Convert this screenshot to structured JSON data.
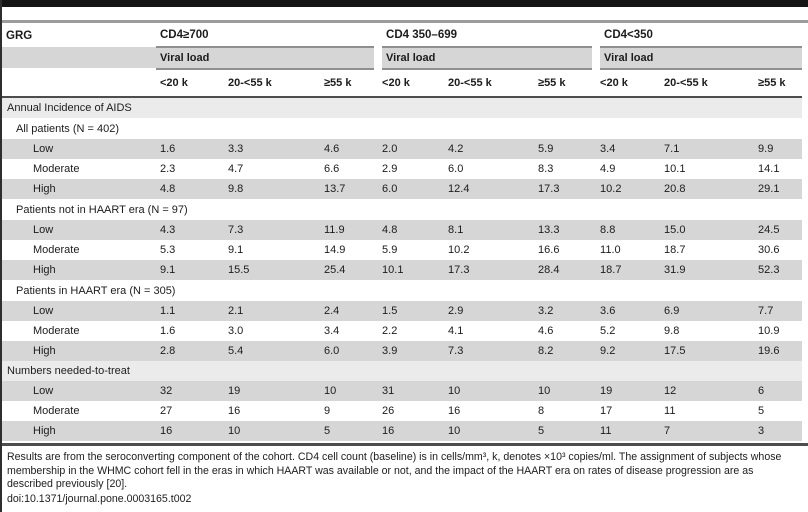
{
  "table": {
    "row_label_header": "GRG",
    "groups": [
      {
        "label": "CD4≥700",
        "subheader": "Viral load",
        "columns": [
          "<20 k",
          "20-<55 k",
          "≥55 k"
        ]
      },
      {
        "label": "CD4 350–699",
        "subheader": "Viral load",
        "columns": [
          "<20 k",
          "20-<55 k",
          "≥55 k"
        ]
      },
      {
        "label": "CD4<350",
        "subheader": "Viral load",
        "columns": [
          "<20 k",
          "20-<55 k",
          "≥55 k"
        ]
      }
    ],
    "sections": [
      {
        "title": "Annual Incidence of AIDS",
        "subsections": [
          {
            "title": "All patients (N = 402)",
            "rows": [
              {
                "label": "Low",
                "values": [
                  "1.6",
                  "3.3",
                  "4.6",
                  "2.0",
                  "4.2",
                  "5.9",
                  "3.4",
                  "7.1",
                  "9.9"
                ]
              },
              {
                "label": "Moderate",
                "values": [
                  "2.3",
                  "4.7",
                  "6.6",
                  "2.9",
                  "6.0",
                  "8.3",
                  "4.9",
                  "10.1",
                  "14.1"
                ]
              },
              {
                "label": "High",
                "values": [
                  "4.8",
                  "9.8",
                  "13.7",
                  "6.0",
                  "12.4",
                  "17.3",
                  "10.2",
                  "20.8",
                  "29.1"
                ]
              }
            ]
          },
          {
            "title": "Patients not in HAART era (N = 97)",
            "rows": [
              {
                "label": "Low",
                "values": [
                  "4.3",
                  "7.3",
                  "11.9",
                  "4.8",
                  "8.1",
                  "13.3",
                  "8.8",
                  "15.0",
                  "24.5"
                ]
              },
              {
                "label": "Moderate",
                "values": [
                  "5.3",
                  "9.1",
                  "14.9",
                  "5.9",
                  "10.2",
                  "16.6",
                  "11.0",
                  "18.7",
                  "30.6"
                ]
              },
              {
                "label": "High",
                "values": [
                  "9.1",
                  "15.5",
                  "25.4",
                  "10.1",
                  "17.3",
                  "28.4",
                  "18.7",
                  "31.9",
                  "52.3"
                ]
              }
            ]
          },
          {
            "title": "Patients in HAART era (N = 305)",
            "rows": [
              {
                "label": "Low",
                "values": [
                  "1.1",
                  "2.1",
                  "2.4",
                  "1.5",
                  "2.9",
                  "3.2",
                  "3.6",
                  "6.9",
                  "7.7"
                ]
              },
              {
                "label": "Moderate",
                "values": [
                  "1.6",
                  "3.0",
                  "3.4",
                  "2.2",
                  "4.1",
                  "4.6",
                  "5.2",
                  "9.8",
                  "10.9"
                ]
              },
              {
                "label": "High",
                "values": [
                  "2.8",
                  "5.4",
                  "6.0",
                  "3.9",
                  "7.3",
                  "8.2",
                  "9.2",
                  "17.5",
                  "19.6"
                ]
              }
            ]
          }
        ]
      },
      {
        "title": "Numbers needed-to-treat",
        "subsections": [
          {
            "title": null,
            "rows": [
              {
                "label": "Low",
                "values": [
                  "32",
                  "19",
                  "10",
                  "31",
                  "10",
                  "10",
                  "19",
                  "12",
                  "6"
                ]
              },
              {
                "label": "Moderate",
                "values": [
                  "27",
                  "16",
                  "9",
                  "26",
                  "16",
                  "8",
                  "17",
                  "11",
                  "5"
                ]
              },
              {
                "label": "High",
                "values": [
                  "16",
                  "10",
                  "5",
                  "16",
                  "10",
                  "5",
                  "11",
                  "7",
                  "3"
                ]
              }
            ]
          }
        ]
      }
    ]
  },
  "footer": {
    "note": "Results are from the seroconverting component of the cohort. CD4 cell count (baseline) is in cells/mm³, k, denotes ×10³ copies/ml. The assignment of subjects whose membership in the WHMC cohort fell in the eras in which HAART was available or not, and the impact of the HAART era on rates of disease progression are as described previously [20].",
    "doi": "doi:10.1371/journal.pone.0003165.t002"
  }
}
